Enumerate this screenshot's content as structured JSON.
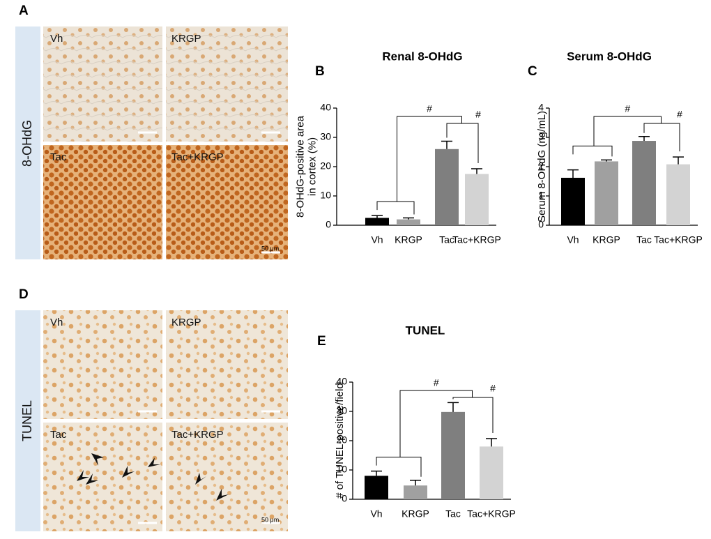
{
  "panels": [
    {
      "letter": "A",
      "stain": "8-OHdG",
      "images": [
        "Vh",
        "KRGP",
        "Tac",
        "Tac+KRGP"
      ],
      "scale": "50 μm"
    },
    {
      "letter": "D",
      "stain": "TUNEL",
      "images": [
        "Vh",
        "KRGP",
        "Tac",
        "Tac+KRGP"
      ],
      "scale": "50 μm"
    }
  ],
  "chart_data": [
    {
      "type": "bar",
      "panel": "B",
      "title": "Renal 8-OHdG",
      "ylabel": [
        "8-OHdG-positive area",
        "in cortex (%)"
      ],
      "categories": [
        "Vh",
        "KRGP",
        "Tac",
        "Tac+KRGP"
      ],
      "values": [
        2.5,
        2,
        26,
        17.5
      ],
      "errors": [
        0.8,
        0.5,
        2.7,
        1.8
      ],
      "colors": [
        "#000000",
        "#a0a0a0",
        "#7f7f7f",
        "#d3d3d3"
      ],
      "ylim": [
        0,
        40
      ],
      "yticks": [
        0,
        10,
        20,
        30,
        40
      ],
      "annotations": [
        "#",
        "#"
      ]
    },
    {
      "type": "bar",
      "panel": "C",
      "title": "Serum 8-OHdG",
      "ylabel": [
        "Serum 8-OHdG (ng/mL)"
      ],
      "categories": [
        "Vh",
        "KRGP",
        "Tac",
        "Tac+KRGP"
      ],
      "values": [
        1.62,
        2.18,
        2.88,
        2.08
      ],
      "errors": [
        0.27,
        0.05,
        0.15,
        0.25
      ],
      "colors": [
        "#000000",
        "#a0a0a0",
        "#7f7f7f",
        "#d3d3d3"
      ],
      "ylim": [
        0,
        4
      ],
      "yticks": [
        0,
        1,
        2,
        3,
        4
      ],
      "annotations": [
        "#",
        "#"
      ]
    },
    {
      "type": "bar",
      "panel": "E",
      "title": "TUNEL",
      "ylabel": [
        "# of TUNEL-positive/field"
      ],
      "categories": [
        "Vh",
        "KRGP",
        "Tac",
        "Tac+KRGP"
      ],
      "values": [
        8,
        4.7,
        29.8,
        18
      ],
      "errors": [
        1.6,
        1.8,
        3.2,
        2.7
      ],
      "colors": [
        "#000000",
        "#a0a0a0",
        "#7f7f7f",
        "#d3d3d3"
      ],
      "ylim": [
        0,
        40
      ],
      "yticks": [
        0,
        10,
        20,
        30,
        40
      ],
      "annotations": [
        "#",
        "#"
      ]
    }
  ]
}
